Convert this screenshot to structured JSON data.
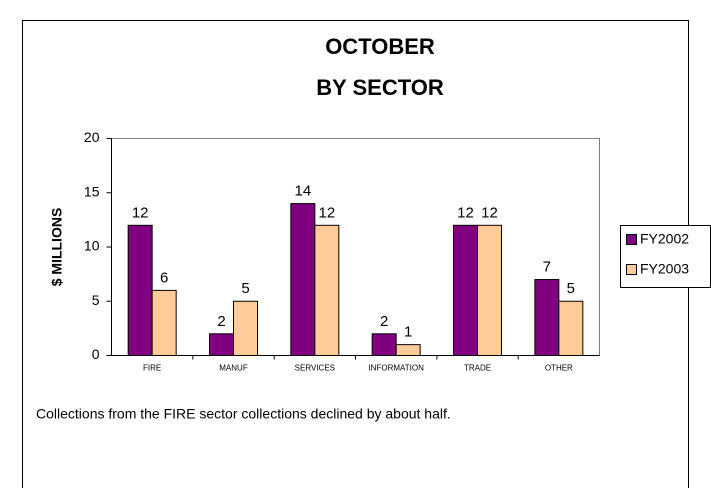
{
  "chart_data": {
    "type": "bar",
    "title": [
      "OCTOBER",
      "BY SECTOR"
    ],
    "y_label": "$ MILLIONS",
    "categories": [
      "FIRE",
      "MANUF",
      "SERVICES",
      "INFORMATION",
      "TRADE",
      "OTHER"
    ],
    "series": [
      {
        "name": "FY2002",
        "color": "#800080",
        "values": [
          12,
          2,
          14,
          2,
          12,
          7
        ]
      },
      {
        "name": "FY2003",
        "color": "#ffcc99",
        "values": [
          6,
          5,
          12,
          1,
          12,
          5
        ]
      }
    ],
    "ylim": [
      0,
      20
    ],
    "yticks": [
      0,
      5,
      10,
      15,
      20
    ],
    "grid": false,
    "legend": "right",
    "caption": "Collections from the FIRE sector collections declined by about half."
  }
}
